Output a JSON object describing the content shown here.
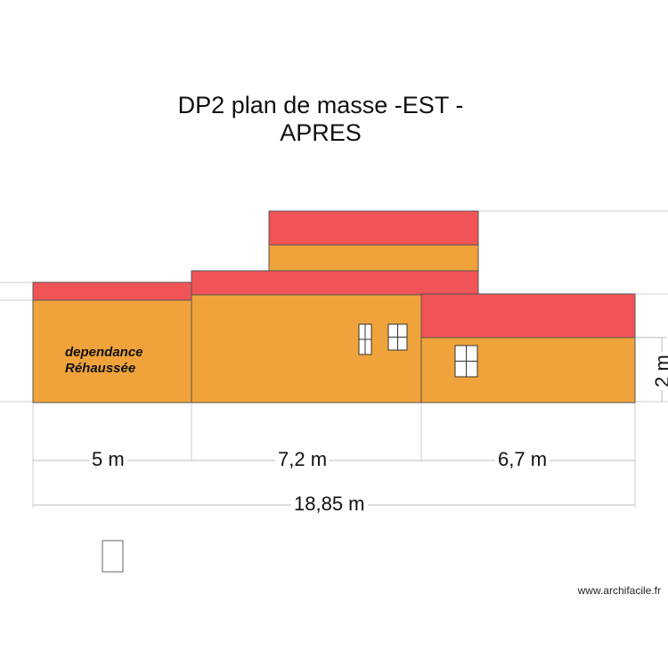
{
  "title": {
    "line1": "DP2 plan de masse -EST -",
    "line2": "APRES"
  },
  "annotation": {
    "line1": "dependance",
    "line2": "Réhaussée"
  },
  "dimensions": {
    "segment1": "5 m",
    "segment2": "7,2 m",
    "segment3": "6,7 m",
    "total": "18,85 m",
    "height": "2 m"
  },
  "watermark": "www.archifacile.fr",
  "colors": {
    "roof": "#f05457",
    "wall": "#f0a33a",
    "outline": "#555555",
    "guide": "#cccccc"
  }
}
